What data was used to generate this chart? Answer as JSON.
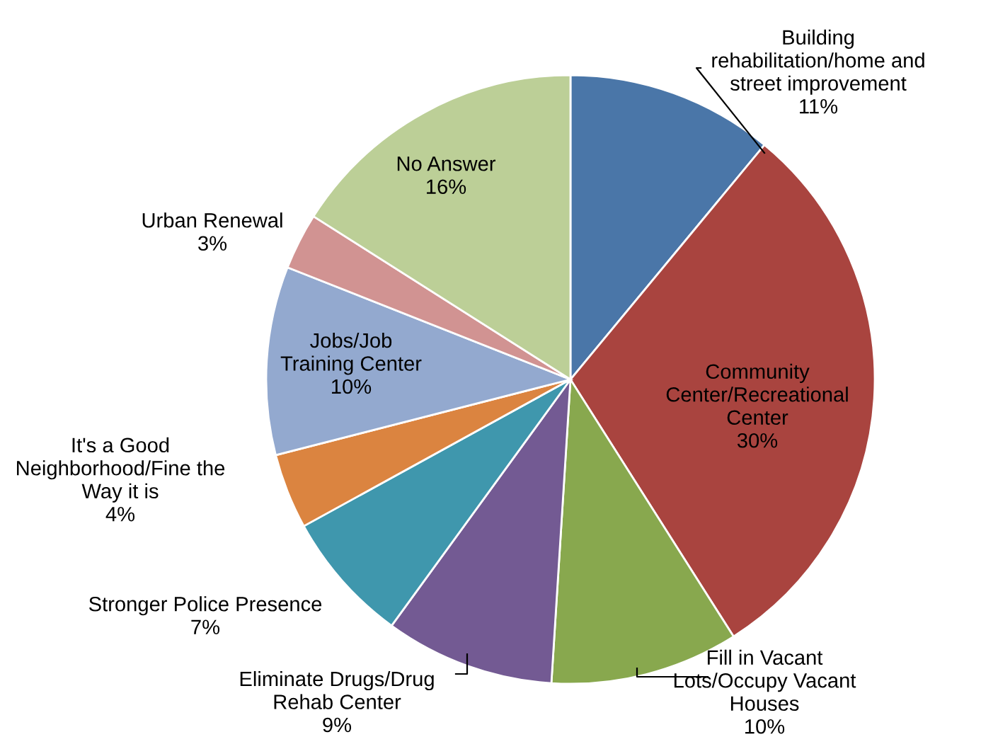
{
  "chart_data": {
    "type": "pie",
    "categories": [
      "Building\nrehabilitation/home and\nstreet improvement",
      "Community\nCenter/Recreational\nCenter",
      "Fill in Vacant\nLots/Occupy Vacant\nHouses",
      "Eliminate Drugs/Drug\nRehab Center",
      "Stronger Police Presence",
      "It's a Good\nNeighborhood/Fine the\nWay it is",
      "Jobs/Job\nTraining Center",
      "Urban Renewal",
      "No Answer"
    ],
    "values": [
      11,
      30,
      10,
      9,
      7,
      4,
      10,
      3,
      16
    ],
    "value_labels": [
      "11%",
      "30%",
      "10%",
      "9%",
      "7%",
      "4%",
      "10%",
      "3%",
      "16%"
    ],
    "colors": [
      "#4a76a8",
      "#a9443f",
      "#88a84e",
      "#735a93",
      "#3f97ad",
      "#db8440",
      "#93a9cf",
      "#d19392",
      "#bccf97"
    ]
  }
}
